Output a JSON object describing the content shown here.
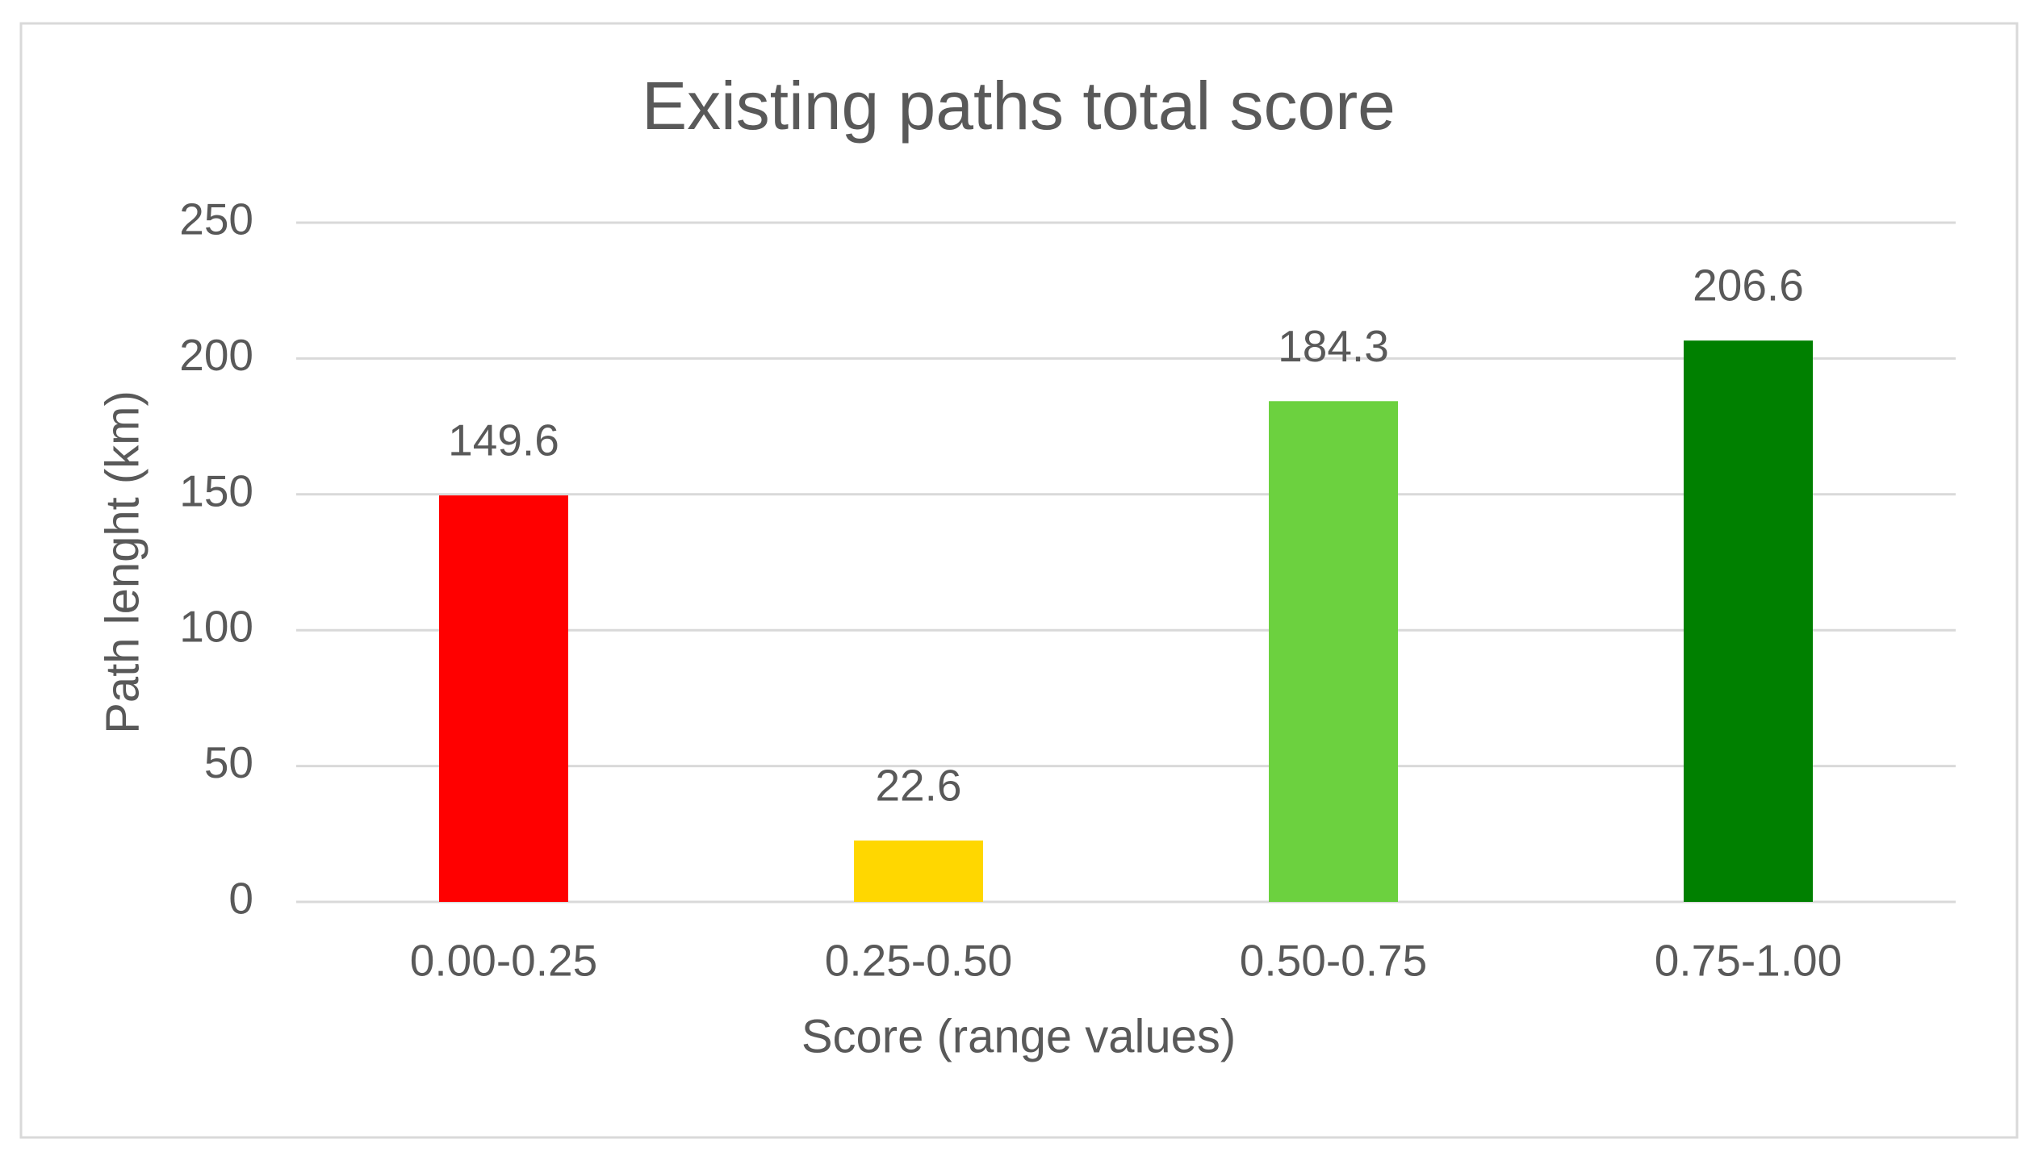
{
  "chart_data": {
    "type": "bar",
    "title": "Existing paths total score",
    "x_label": "Score (range values)",
    "y_label": "Path lenght (km)",
    "categories": [
      "0.00-0.25",
      "0.25-0.50",
      "0.50-0.75",
      "0.75-1.00"
    ],
    "values": [
      149.6,
      22.6,
      184.3,
      206.6
    ],
    "colors": [
      "#ff0000",
      "#ffd700",
      "#6cd13f",
      "#008000"
    ],
    "ylim": [
      0,
      250
    ],
    "yticks": [
      0,
      50,
      100,
      150,
      200,
      250
    ],
    "grid": true
  }
}
